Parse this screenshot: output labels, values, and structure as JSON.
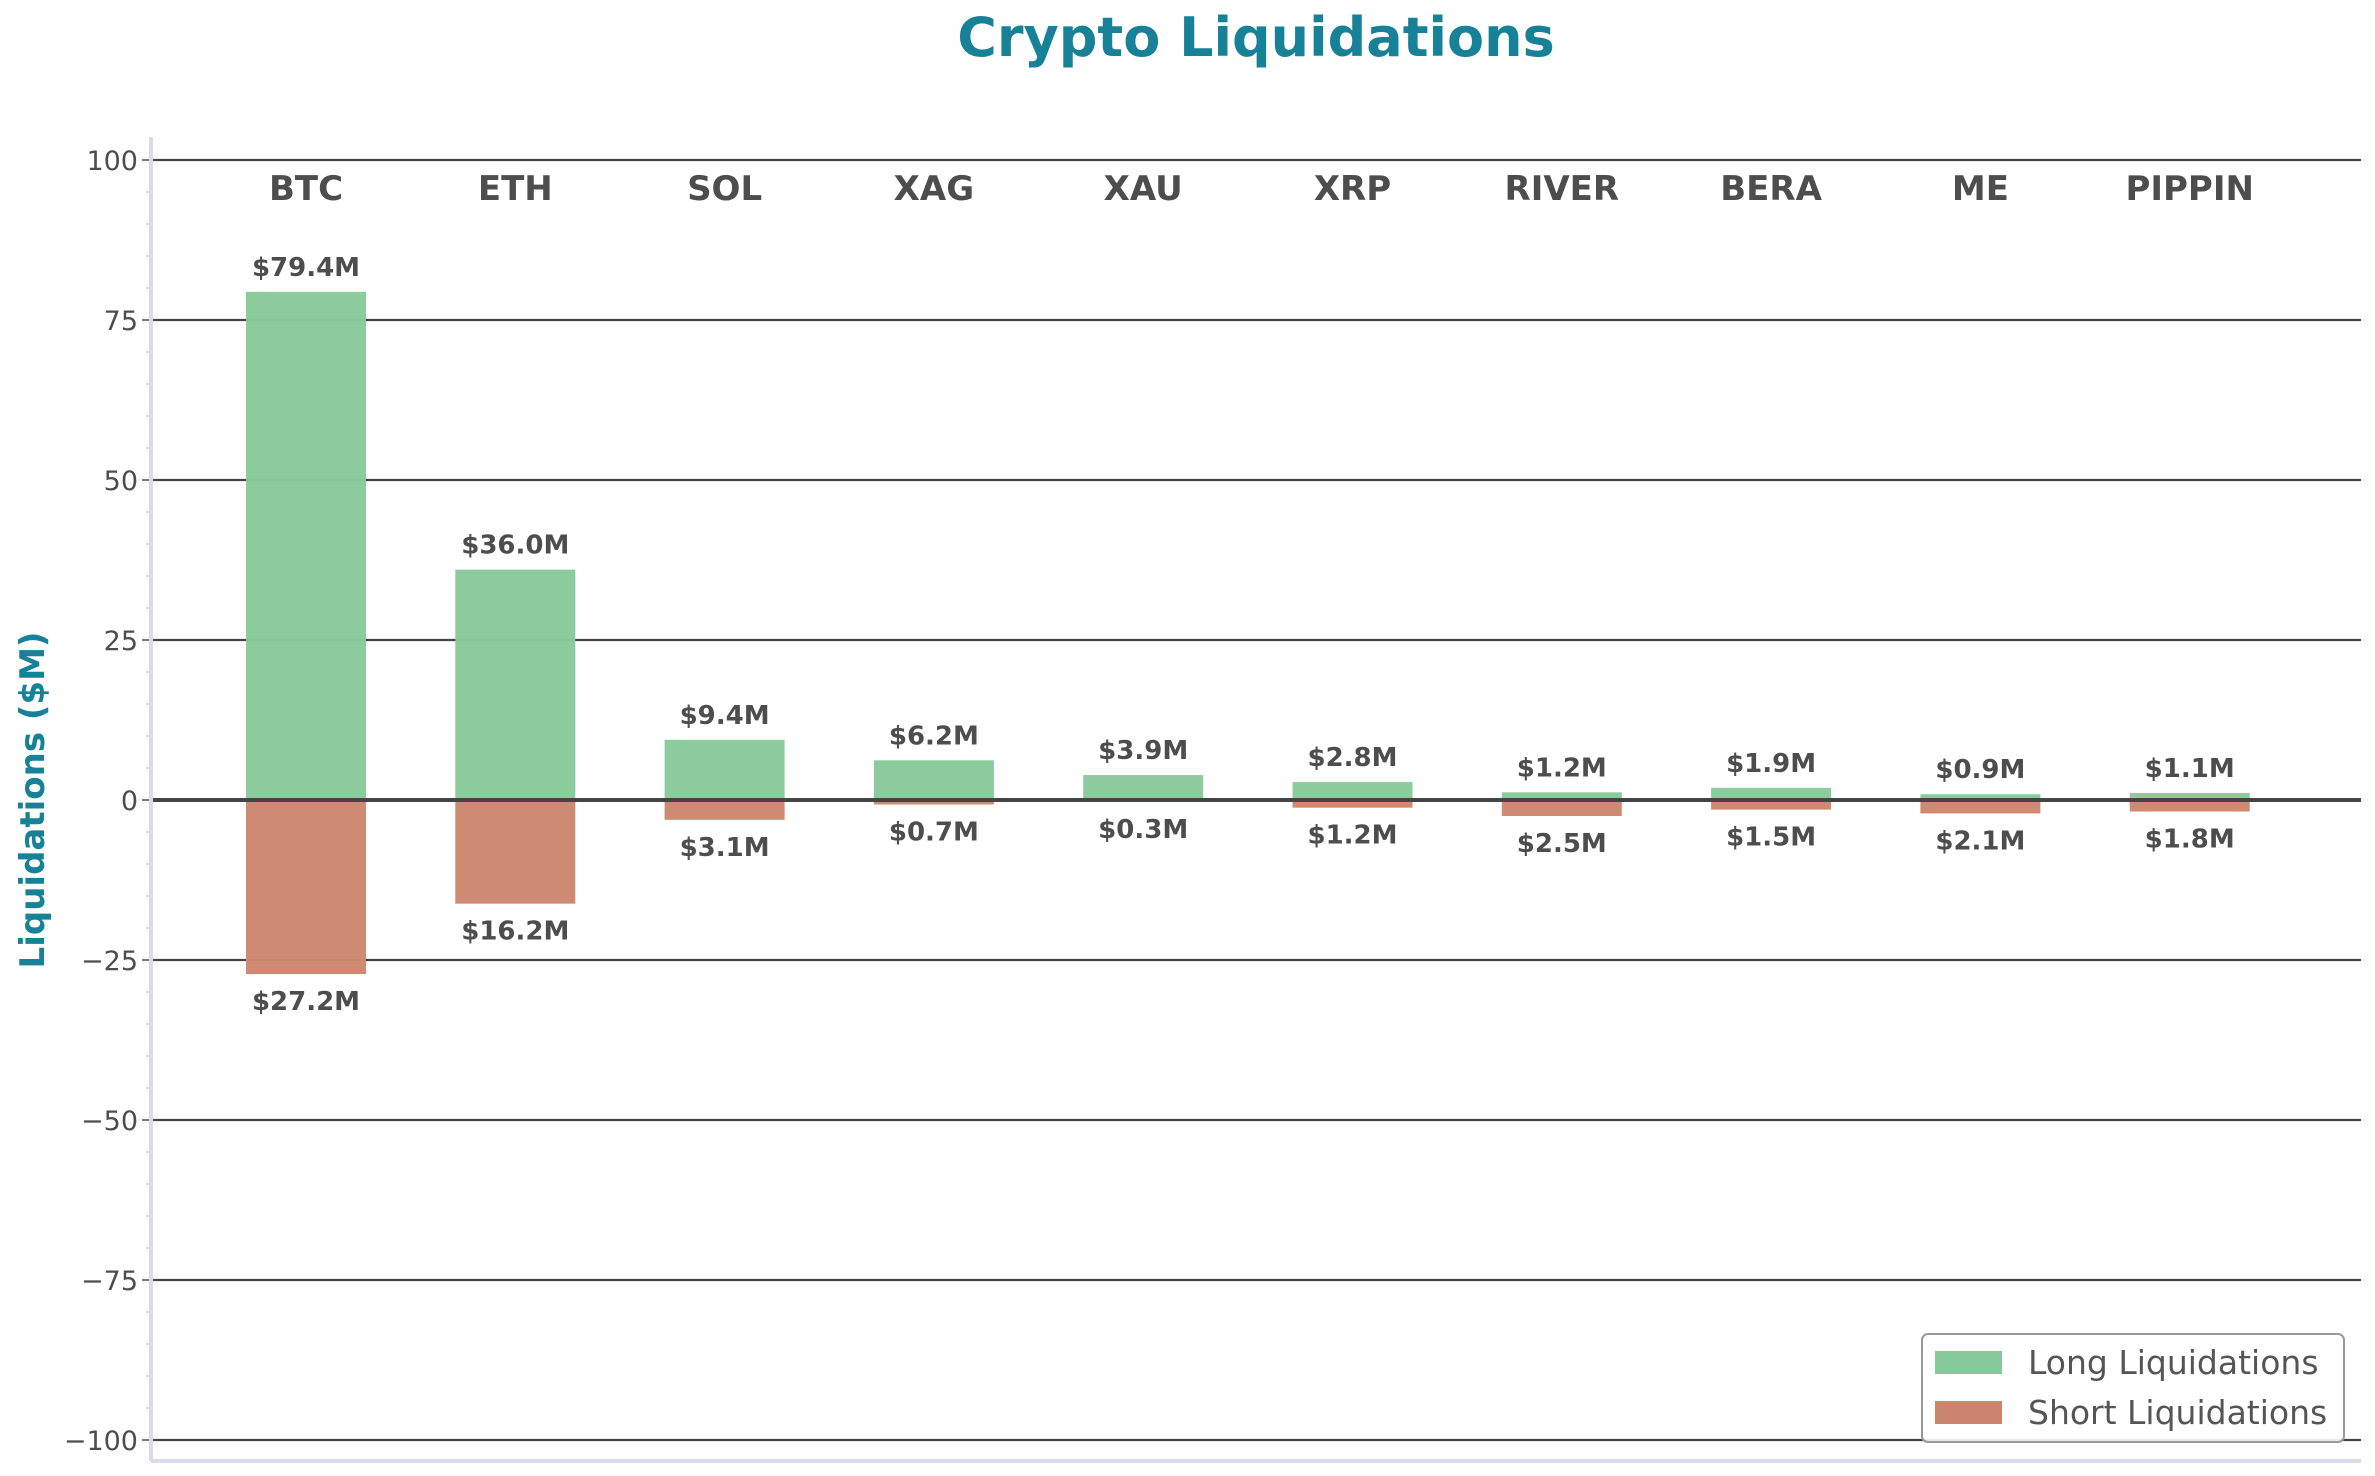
{
  "chart_data": {
    "type": "bar",
    "title": "Crypto Liquidations",
    "xlabel": "",
    "ylabel": "Liquidations ($M)",
    "ylim": [
      -100,
      100
    ],
    "yticks": [
      100,
      75,
      50,
      25,
      0,
      -25,
      -50,
      -75,
      -100
    ],
    "ytick_labels": [
      "100",
      "75",
      "50",
      "25",
      "0",
      "−25",
      "−50",
      "−75",
      "−100"
    ],
    "grid": true,
    "legend_position": "lower right",
    "categories": [
      "BTC",
      "ETH",
      "SOL",
      "XAG",
      "XAU",
      "XRP",
      "RIVER",
      "BERA",
      "ME",
      "PIPPIN"
    ],
    "series": [
      {
        "name": "Long Liquidations",
        "color": "#88c999",
        "values": [
          79.4,
          36.0,
          9.4,
          6.2,
          3.9,
          2.8,
          1.2,
          1.9,
          0.9,
          1.1
        ],
        "labels": [
          "$79.4M",
          "$36.0M",
          "$9.4M",
          "$6.2M",
          "$3.9M",
          "$2.8M",
          "$1.2M",
          "$1.9M",
          "$0.9M",
          "$1.1M"
        ]
      },
      {
        "name": "Short Liquidations",
        "color": "#cd866e",
        "values": [
          -27.2,
          -16.2,
          -3.1,
          -0.7,
          -0.3,
          -1.2,
          -2.5,
          -1.5,
          -2.1,
          -1.8
        ],
        "labels": [
          "$27.2M",
          "$16.2M",
          "$3.1M",
          "$0.7M",
          "$0.3M",
          "$1.2M",
          "$2.5M",
          "$1.5M",
          "$2.1M",
          "$1.8M"
        ]
      }
    ]
  },
  "colors": {
    "title": "#168197",
    "text": "#4d4d4d",
    "grid": "#444444",
    "spine": "#d6dde8"
  }
}
